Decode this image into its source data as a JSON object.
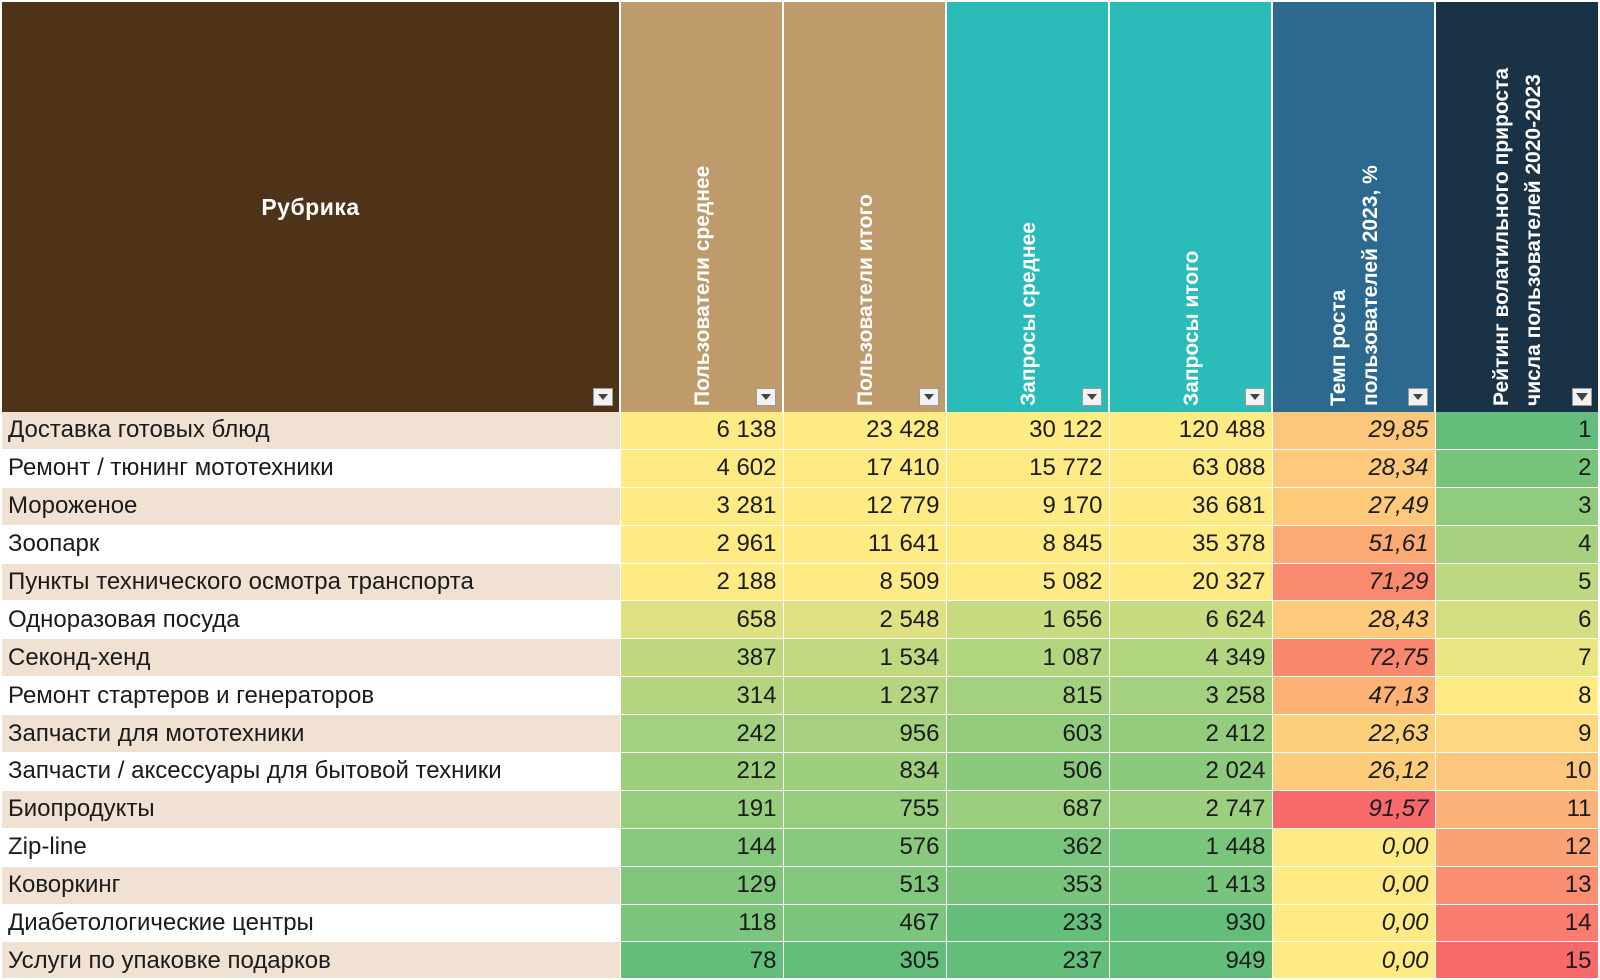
{
  "headers": {
    "rubric": "Рубрика",
    "users_avg": "Пользователи среднее",
    "users_total": "Пользователи итого",
    "requests_avg": "Запросы среднее",
    "requests_total": "Запросы итого",
    "growth_line1": "Темп роста",
    "growth_line2": "пользователей 2023, %",
    "rank_line1": "Рейтинг волатильного прироста",
    "rank_line2": "числа пользователей 2020-2023"
  },
  "rows": [
    {
      "name": "Доставка готовых блюд",
      "users_avg": "6 138",
      "users_total": "23 428",
      "requests_avg": "30 122",
      "requests_total": "120 488",
      "growth": "29,85",
      "rank": "1"
    },
    {
      "name": "Ремонт / тюнинг мототехники",
      "users_avg": "4 602",
      "users_total": "17 410",
      "requests_avg": "15 772",
      "requests_total": "63 088",
      "growth": "28,34",
      "rank": "2"
    },
    {
      "name": "Мороженое",
      "users_avg": "3 281",
      "users_total": "12 779",
      "requests_avg": "9 170",
      "requests_total": "36 681",
      "growth": "27,49",
      "rank": "3"
    },
    {
      "name": "Зоопарк",
      "users_avg": "2 961",
      "users_total": "11 641",
      "requests_avg": "8 845",
      "requests_total": "35 378",
      "growth": "51,61",
      "rank": "4"
    },
    {
      "name": "Пункты технического осмотра транспорта",
      "users_avg": "2 188",
      "users_total": "8 509",
      "requests_avg": "5 082",
      "requests_total": "20 327",
      "growth": "71,29",
      "rank": "5"
    },
    {
      "name": "Одноразовая посуда",
      "users_avg": "658",
      "users_total": "2 548",
      "requests_avg": "1 656",
      "requests_total": "6 624",
      "growth": "28,43",
      "rank": "6"
    },
    {
      "name": "Секонд-хенд",
      "users_avg": "387",
      "users_total": "1 534",
      "requests_avg": "1 087",
      "requests_total": "4 349",
      "growth": "72,75",
      "rank": "7"
    },
    {
      "name": "Ремонт стартеров и генераторов",
      "users_avg": "314",
      "users_total": "1 237",
      "requests_avg": "815",
      "requests_total": "3 258",
      "growth": "47,13",
      "rank": "8"
    },
    {
      "name": "Запчасти для мототехники",
      "users_avg": "242",
      "users_total": "956",
      "requests_avg": "603",
      "requests_total": "2 412",
      "growth": "22,63",
      "rank": "9"
    },
    {
      "name": "Запчасти / аксессуары для бытовой техники",
      "users_avg": "212",
      "users_total": "834",
      "requests_avg": "506",
      "requests_total": "2 024",
      "growth": "26,12",
      "rank": "10"
    },
    {
      "name": "Биопродукты",
      "users_avg": "191",
      "users_total": "755",
      "requests_avg": "687",
      "requests_total": "2 747",
      "growth": "91,57",
      "rank": "11"
    },
    {
      "name": "Zip-line",
      "users_avg": "144",
      "users_total": "576",
      "requests_avg": "362",
      "requests_total": "1 448",
      "growth": "0,00",
      "rank": "12"
    },
    {
      "name": "Коворкинг",
      "users_avg": "129",
      "users_total": "513",
      "requests_avg": "353",
      "requests_total": "1 413",
      "growth": "0,00",
      "rank": "13"
    },
    {
      "name": "Диабетологические центры",
      "users_avg": "118",
      "users_total": "467",
      "requests_avg": "233",
      "requests_total": "930",
      "growth": "0,00",
      "rank": "14"
    },
    {
      "name": "Услуги по упаковке подарков",
      "users_avg": "78",
      "users_total": "305",
      "requests_avg": "237",
      "requests_total": "949",
      "growth": "0,00",
      "rank": "15"
    }
  ],
  "colors": {
    "header_rubric": "#4e3319",
    "header_users": "#bf9b6c",
    "header_requests": "#2bbcb9",
    "header_growth": "#2d698f",
    "header_rank": "#193246",
    "row_alt": "#f0e1d2",
    "scale_green": "#63be7b",
    "scale_yellow": "#ffeb84",
    "scale_orange": "#fbb474",
    "scale_red": "#f8696b"
  }
}
